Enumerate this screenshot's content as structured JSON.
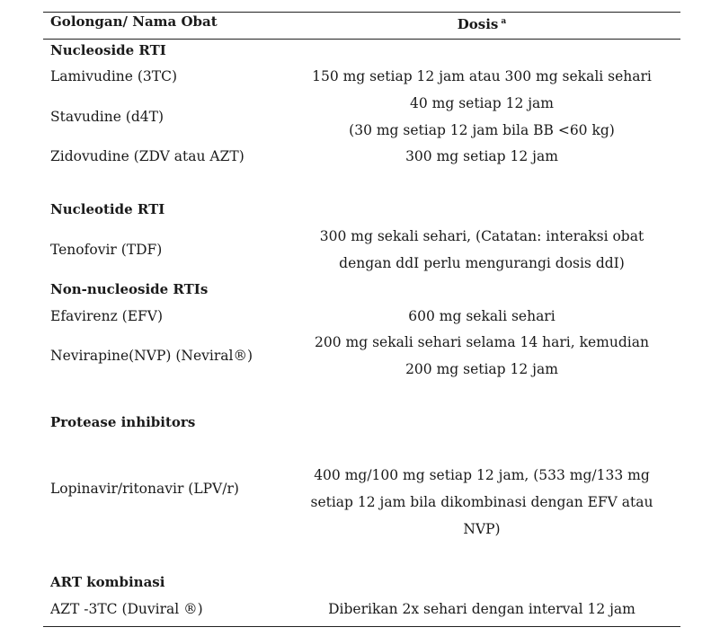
{
  "table": {
    "header": {
      "col1": "Golongan/ Nama Obat",
      "col2": "Dosis",
      "col2_sup": "a"
    },
    "groups": [
      {
        "title": "Nucleoside RTI"
      },
      {
        "title": "Nucleotide RTI"
      },
      {
        "title": "Non-nucleoside RTIs"
      },
      {
        "title": "Protease inhibitors"
      },
      {
        "title": "ART kombinasi"
      }
    ],
    "rows": [
      {
        "name": "Lamivudine (3TC)",
        "dose": [
          "150 mg setiap 12 jam atau 300 mg sekali sehari"
        ]
      },
      {
        "name": "Stavudine (d4T)",
        "dose": [
          "40 mg setiap 12 jam",
          "(30 mg setiap 12 jam bila BB <60 kg)"
        ]
      },
      {
        "name": "Zidovudine (ZDV atau AZT)",
        "dose": [
          "300 mg setiap 12 jam"
        ]
      },
      {
        "name": "Tenofovir (TDF)",
        "dose": [
          "300 mg sekali sehari, (Catatan: interaksi obat",
          "dengan ddI perlu mengurangi dosis ddI)"
        ]
      },
      {
        "name": "Efavirenz (EFV)",
        "dose": [
          "600 mg sekali sehari"
        ]
      },
      {
        "name": "Nevirapine(NVP) (Neviral®)",
        "dose": [
          "200 mg sekali sehari selama 14 hari, kemudian",
          "200 mg setiap 12 jam"
        ]
      },
      {
        "name": "Lopinavir/ritonavir (LPV/r)",
        "dose": [
          "400 mg/100 mg setiap 12 jam, (533 mg/133 mg",
          "setiap 12 jam bila dikombinasi dengan EFV atau",
          "NVP)"
        ]
      },
      {
        "name": "AZT -3TC (Duviral ®)",
        "dose": [
          "Diberikan 2x sehari dengan interval 12 jam"
        ]
      }
    ]
  }
}
